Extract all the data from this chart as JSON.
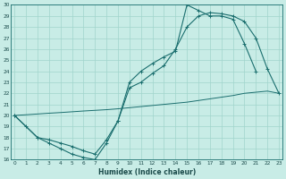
{
  "xlabel": "Humidex (Indice chaleur)",
  "bg_color": "#c8ece6",
  "grid_color": "#a0d4cc",
  "line_color": "#1a6e6e",
  "xmin": 0,
  "xmax": 23,
  "ymin": 16,
  "ymax": 30,
  "line1_x": [
    0,
    1,
    2,
    3,
    4,
    5,
    6,
    7,
    8,
    9,
    10,
    11,
    12,
    13,
    14,
    15,
    16,
    17,
    18,
    19,
    20,
    21
  ],
  "line1_y": [
    20,
    19,
    18,
    17.5,
    17,
    16.5,
    16.2,
    16,
    17.5,
    19.5,
    23,
    24,
    24.7,
    25.3,
    25.8,
    30,
    29.5,
    29,
    29,
    28.7,
    26.5,
    24
  ],
  "line2_x": [
    0,
    2,
    3,
    4,
    5,
    6,
    7,
    8,
    9,
    10,
    11,
    12,
    13,
    14,
    15,
    16,
    17,
    18,
    19,
    20,
    21,
    22,
    23
  ],
  "line2_y": [
    20,
    18,
    17.8,
    17.5,
    17.2,
    16.8,
    16.5,
    17.8,
    19.5,
    22.5,
    23,
    23.8,
    24.5,
    26,
    28,
    29,
    29.3,
    29.2,
    29.0,
    28.5,
    27,
    24.2,
    22
  ],
  "line3_x": [
    0,
    1,
    2,
    3,
    4,
    5,
    6,
    7,
    8,
    9,
    10,
    11,
    12,
    13,
    14,
    15,
    16,
    17,
    18,
    19,
    20,
    21,
    22,
    23
  ],
  "line3_y": [
    20,
    20.06,
    20.13,
    20.2,
    20.26,
    20.33,
    20.4,
    20.46,
    20.52,
    20.6,
    20.7,
    20.8,
    20.9,
    21.0,
    21.1,
    21.2,
    21.35,
    21.5,
    21.65,
    21.8,
    22.0,
    22.1,
    22.2,
    22.0
  ],
  "yticks": [
    16,
    17,
    18,
    19,
    20,
    21,
    22,
    23,
    24,
    25,
    26,
    27,
    28,
    29,
    30
  ],
  "xticks": [
    0,
    1,
    2,
    3,
    4,
    5,
    6,
    7,
    8,
    9,
    10,
    11,
    12,
    13,
    14,
    15,
    16,
    17,
    18,
    19,
    20,
    21,
    22,
    23
  ]
}
